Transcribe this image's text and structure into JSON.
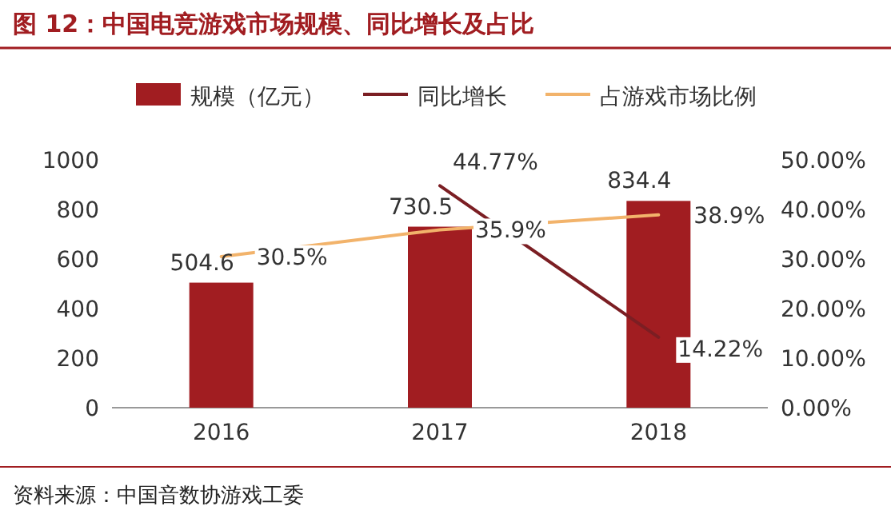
{
  "chart_data": {
    "type": "bar",
    "title": "图 12：中国电竞游戏市场规模、同比增长及占比",
    "categories": [
      "2016",
      "2017",
      "2018"
    ],
    "series": [
      {
        "name": "规模（亿元）",
        "color": "#a11d21",
        "values": [
          504.6,
          730.5,
          834.4
        ],
        "value_labels": [
          "504.6",
          "730.5",
          "834.4"
        ]
      },
      {
        "name": "同比增长",
        "type": "line",
        "axis": "y2",
        "color": "#7b1e23",
        "values": [
          null,
          44.77,
          14.22
        ],
        "value_labels": [
          null,
          "44.77%",
          "14.22%"
        ]
      },
      {
        "name": "占游戏市场比例",
        "type": "line",
        "axis": "y2",
        "color": "#f2b36b",
        "values": [
          30.5,
          35.9,
          38.9
        ],
        "value_labels": [
          "30.5%",
          "35.9%",
          "38.9%"
        ]
      }
    ],
    "ylim": [
      0,
      1000
    ],
    "yticks": [
      0,
      200,
      400,
      600,
      800,
      1000
    ],
    "y2lim": [
      0,
      50
    ],
    "y2ticks": [
      {
        "value": 0,
        "label": "0.00%"
      },
      {
        "value": 10,
        "label": "10.00%"
      },
      {
        "value": 20,
        "label": "20.00%"
      },
      {
        "value": 30,
        "label": "30.00%"
      },
      {
        "value": 40,
        "label": "40.00%"
      },
      {
        "value": 50,
        "label": "50.00%"
      }
    ],
    "legend": "top",
    "grid": false,
    "annotations": [
      "资料来源：中国音数协游戏工委"
    ]
  }
}
